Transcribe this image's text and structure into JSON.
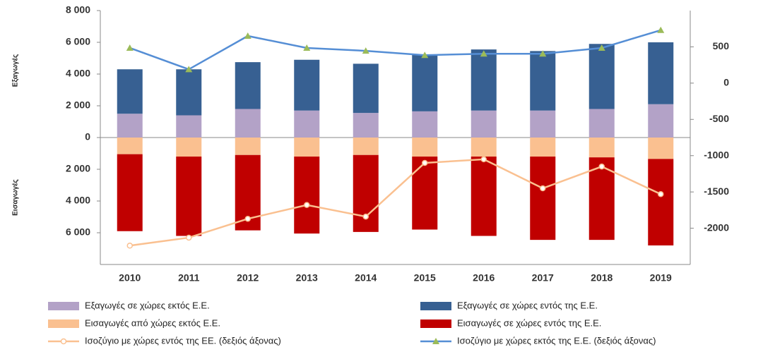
{
  "chart_data": {
    "type": "bar",
    "y_label_top": "Εξαγωγές",
    "y_label_bottom": "Εισαγωγές",
    "categories": [
      "2010",
      "2011",
      "2012",
      "2013",
      "2014",
      "2015",
      "2016",
      "2017",
      "2018",
      "2019"
    ],
    "ylim": [
      -8000,
      8000
    ],
    "yticks": [
      {
        "value": 8000,
        "label": "8 000"
      },
      {
        "value": 6000,
        "label": "6 000"
      },
      {
        "value": 4000,
        "label": "4 000"
      },
      {
        "value": 2000,
        "label": "2 000"
      },
      0,
      {
        "value": -2000,
        "label": "2 000"
      },
      {
        "value": -4000,
        "label": "4 000"
      },
      {
        "value": -6000,
        "label": "6 000"
      }
    ],
    "y2lim": [
      -2500,
      1000
    ],
    "y2ticks": [
      500,
      0,
      -500,
      -1000,
      -1500,
      -2000
    ],
    "series": [
      {
        "name": "Εξαγωγές σε χώρες εκτός Ε.Ε.",
        "type": "bar",
        "color": "#b3a2c7",
        "values": [
          1500,
          1400,
          1800,
          1700,
          1550,
          1650,
          1700,
          1700,
          1800,
          2100
        ]
      },
      {
        "name": "Εξαγωγές σε χώρες εντός της Ε.Ε.",
        "type": "bar",
        "color": "#376092",
        "values": [
          2800,
          2900,
          2950,
          3200,
          3100,
          3550,
          3850,
          3750,
          4100,
          3900
        ]
      },
      {
        "name": "Εισαγωγές από χώρες εκτός Ε.Ε.",
        "type": "bar",
        "color": "#fac090",
        "values": [
          -1050,
          -1200,
          -1100,
          -1200,
          -1100,
          -1200,
          -1200,
          -1200,
          -1250,
          -1350
        ]
      },
      {
        "name": "Εισαγωγές σε χώρες εντός της Ε.Ε.",
        "type": "bar",
        "color": "#c00000",
        "values": [
          -4850,
          -5000,
          -4750,
          -4850,
          -4850,
          -4600,
          -5000,
          -5250,
          -5200,
          -5450
        ]
      },
      {
        "name": "Ισοζύγιο με χώρες εντός της ΕΕ. (δεξιός άξονας)",
        "type": "line",
        "axis": "y2",
        "color": "#fac090",
        "marker": "circle",
        "marker_color": "#ffffff",
        "values": [
          -2240,
          -2130,
          -1870,
          -1680,
          -1840,
          -1100,
          -1050,
          -1450,
          -1150,
          -1530
        ]
      },
      {
        "name": "Ισοζύγιο με χώρες εκτός της Ε.Ε. (δεξιός άξονας)",
        "type": "line",
        "axis": "y2",
        "color": "#558ed5",
        "marker": "triangle",
        "marker_color": "#9bbb59",
        "values": [
          485,
          190,
          650,
          485,
          445,
          385,
          405,
          405,
          485,
          730
        ]
      }
    ]
  }
}
